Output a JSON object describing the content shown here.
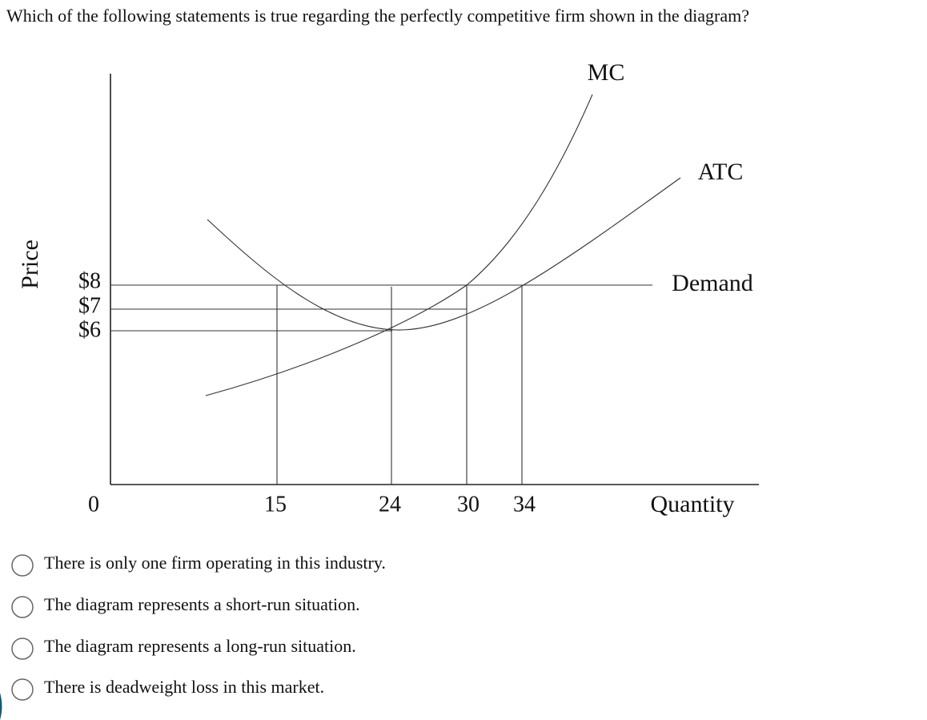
{
  "question": "Which of the following statements is true regarding the perfectly competitive firm shown in the diagram?",
  "diagram": {
    "y_label": "Price",
    "x_label": "Quantity",
    "y_ticks": [
      "$8",
      "$7",
      "$6"
    ],
    "x_ticks": [
      "0",
      "15",
      "24",
      "30",
      "34"
    ],
    "curves": {
      "mc": "MC",
      "atc": "ATC",
      "demand": "Demand"
    }
  },
  "options": [
    "There is only one firm operating in this industry.",
    "The diagram represents a short-run situation.",
    "The diagram represents a long-run situation.",
    "There is deadweight loss in this market."
  ]
}
